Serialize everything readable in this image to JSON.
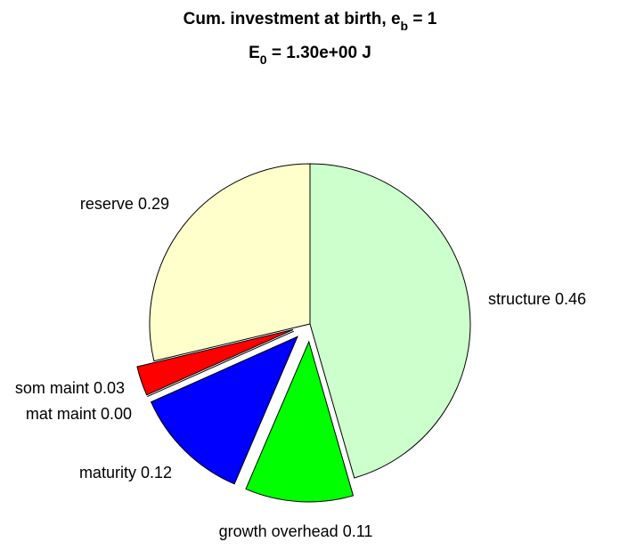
{
  "chart_data": {
    "type": "pie",
    "title": [
      [
        "Cum. investment at birth, e",
        "b",
        " = 1"
      ],
      [
        "E",
        "0",
        " = 1.30e+00 J"
      ]
    ],
    "categories": [
      "structure",
      "growth overhead",
      "maturity",
      "mat maint",
      "som maint",
      "reserve"
    ],
    "values": [
      0.46,
      0.11,
      0.12,
      0,
      0.03,
      0.29
    ],
    "value_labels": [
      "0.46",
      "0.11",
      "0.12",
      "0.00",
      "0.03",
      "0.29"
    ],
    "colors": [
      "#ccffcc",
      "#00ff00",
      "#0000ff",
      "#ff00ff",
      "#ff0000",
      "#ffffcc"
    ],
    "explode": [
      false,
      true,
      true,
      true,
      true,
      false
    ]
  }
}
